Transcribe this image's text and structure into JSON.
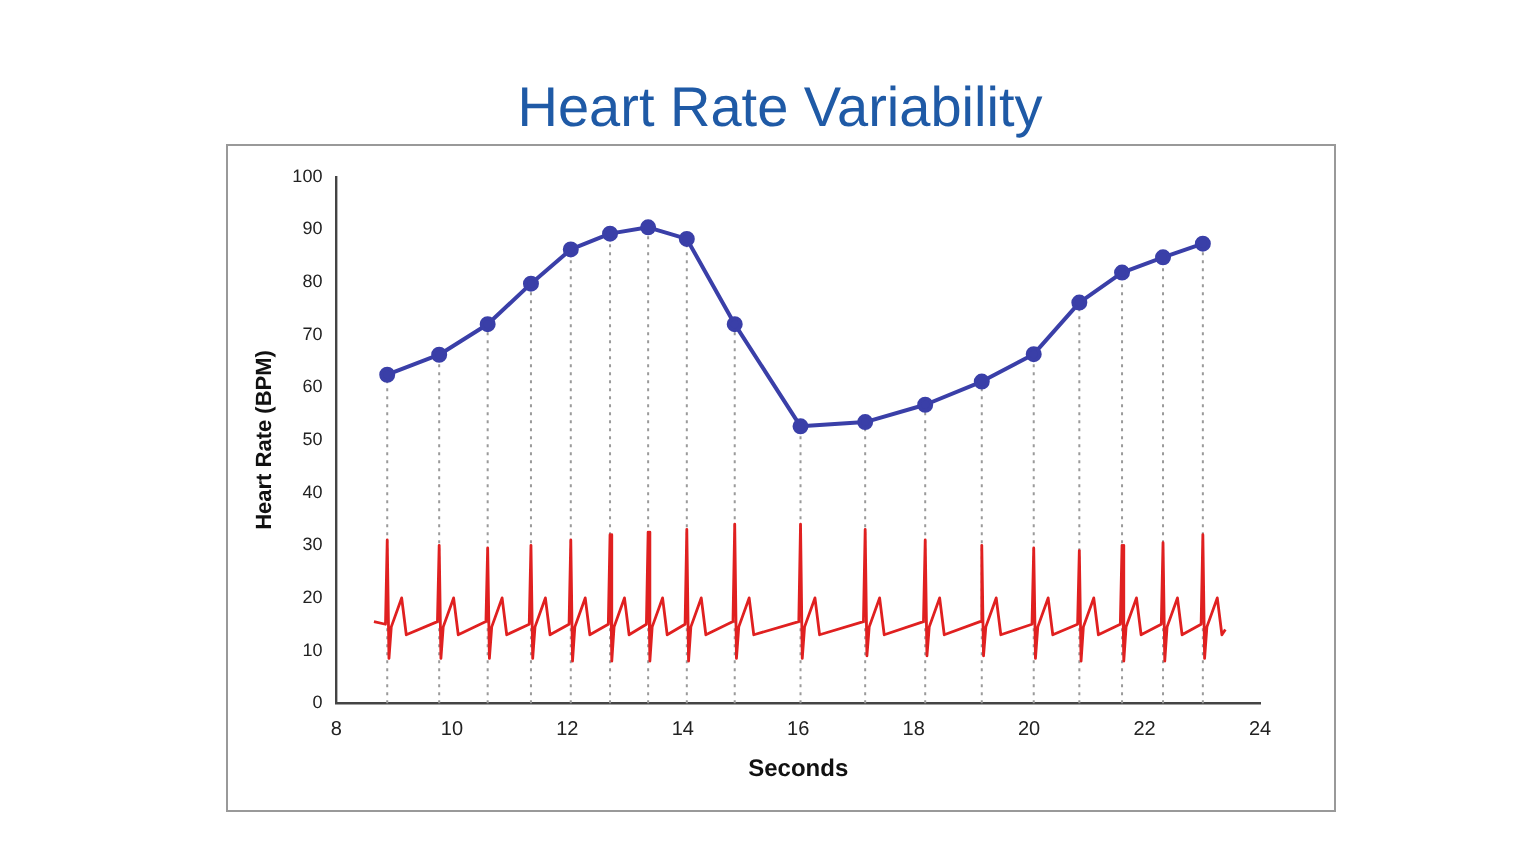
{
  "chart_data": {
    "type": "line",
    "title": "Heart Rate Variability",
    "xlabel": "Seconds",
    "ylabel": "Heart Rate (BPM)",
    "xlim": [
      8,
      24
    ],
    "xticks": [
      8,
      10,
      12,
      14,
      16,
      18,
      20,
      22,
      24
    ],
    "ylim": [
      0,
      100
    ],
    "yticks": [
      0,
      10,
      20,
      30,
      40,
      50,
      60,
      70,
      80,
      90,
      100
    ],
    "grid": false,
    "legend": false,
    "series": [
      {
        "color": "#3a3fa8",
        "marker": "circle",
        "x": [
          8.88,
          9.78,
          10.62,
          11.37,
          12.06,
          12.74,
          13.4,
          14.07,
          14.9,
          16.04,
          17.16,
          18.2,
          19.18,
          20.08,
          20.87,
          21.61,
          22.32,
          23.01
        ],
        "values": [
          62.4,
          66.2,
          72,
          79.7,
          86.2,
          89.2,
          90.4,
          88.2,
          72,
          52.6,
          53.4,
          56.7,
          61.1,
          66.3,
          76.1,
          81.8,
          84.7,
          87.3
        ]
      },
      {
        "color": "#e02020",
        "marker": "none",
        "x": [
          8.65,
          8.85,
          8.88,
          8.91,
          8.95,
          9.13,
          9.21,
          9.75,
          9.78,
          9.81,
          9.85,
          10.03,
          10.11,
          10.59,
          10.62,
          10.65,
          10.69,
          10.87,
          10.95,
          11.34,
          11.37,
          11.4,
          11.44,
          11.62,
          11.7,
          12.03,
          12.06,
          12.09,
          12.13,
          12.31,
          12.39,
          12.71,
          12.74,
          12.77,
          12.81,
          12.99,
          13.07,
          13.37,
          13.4,
          13.43,
          13.47,
          13.65,
          13.73,
          14.04,
          14.07,
          14.1,
          14.14,
          14.32,
          14.4,
          14.87,
          14.9,
          14.93,
          14.97,
          15.15,
          15.23,
          16.01,
          16.04,
          16.07,
          16.11,
          16.29,
          16.37,
          17.13,
          17.16,
          17.19,
          17.23,
          17.41,
          17.49,
          18.17,
          18.2,
          18.23,
          18.27,
          18.45,
          18.53,
          19.15,
          19.18,
          19.21,
          19.25,
          19.43,
          19.51,
          20.05,
          20.08,
          20.11,
          20.15,
          20.33,
          20.41,
          20.84,
          20.87,
          20.9,
          20.94,
          21.12,
          21.2,
          21.58,
          21.61,
          21.64,
          21.68,
          21.86,
          21.94,
          22.29,
          22.32,
          22.35,
          22.39,
          22.57,
          22.65,
          22.98,
          23.01,
          23.04,
          23.08,
          23.26,
          23.34,
          23.4
        ],
        "values": [
          15.5,
          15,
          31,
          8.5,
          14.5,
          20,
          13,
          15.5,
          30,
          8.5,
          14.5,
          20,
          13,
          15.5,
          29.5,
          8.5,
          14.5,
          20,
          13,
          15,
          30,
          8.5,
          14.5,
          20,
          13,
          15,
          31,
          8,
          14.5,
          20,
          13,
          15,
          32,
          8,
          14.5,
          20,
          13,
          15,
          32.5,
          8,
          14.5,
          20,
          13,
          15,
          33,
          8,
          14.5,
          20,
          13,
          15.5,
          34,
          8.5,
          14.5,
          20,
          13,
          15.5,
          34,
          8.5,
          14.5,
          20,
          13,
          15.5,
          33,
          9,
          14.5,
          20,
          13,
          15.5,
          31,
          9,
          14.5,
          20,
          13,
          15.5,
          30,
          9,
          14.5,
          20,
          13,
          15,
          29.5,
          8.5,
          14.5,
          20,
          13,
          15,
          29,
          8,
          14.5,
          20,
          13,
          15,
          30,
          8,
          14.5,
          20,
          13,
          15,
          30.5,
          8,
          14.5,
          20,
          13,
          15,
          32,
          8.5,
          14.5,
          20,
          13,
          14
        ]
      }
    ],
    "ref_lines": [
      {
        "axis": "x",
        "value": 8.88,
        "color": "#9a9a9a",
        "line_style": "dotted"
      },
      {
        "axis": "x",
        "value": 9.78,
        "color": "#9a9a9a",
        "line_style": "dotted"
      },
      {
        "axis": "x",
        "value": 10.62,
        "color": "#9a9a9a",
        "line_style": "dotted"
      },
      {
        "axis": "x",
        "value": 11.37,
        "color": "#9a9a9a",
        "line_style": "dotted"
      },
      {
        "axis": "x",
        "value": 12.06,
        "color": "#9a9a9a",
        "line_style": "dotted"
      },
      {
        "axis": "x",
        "value": 12.74,
        "color": "#9a9a9a",
        "line_style": "dotted"
      },
      {
        "axis": "x",
        "value": 13.4,
        "color": "#9a9a9a",
        "line_style": "dotted"
      },
      {
        "axis": "x",
        "value": 14.07,
        "color": "#9a9a9a",
        "line_style": "dotted"
      },
      {
        "axis": "x",
        "value": 14.9,
        "color": "#9a9a9a",
        "line_style": "dotted"
      },
      {
        "axis": "x",
        "value": 16.04,
        "color": "#9a9a9a",
        "line_style": "dotted"
      },
      {
        "axis": "x",
        "value": 17.16,
        "color": "#9a9a9a",
        "line_style": "dotted"
      },
      {
        "axis": "x",
        "value": 18.2,
        "color": "#9a9a9a",
        "line_style": "dotted"
      },
      {
        "axis": "x",
        "value": 19.18,
        "color": "#9a9a9a",
        "line_style": "dotted"
      },
      {
        "axis": "x",
        "value": 20.08,
        "color": "#9a9a9a",
        "line_style": "dotted"
      },
      {
        "axis": "x",
        "value": 20.87,
        "color": "#9a9a9a",
        "line_style": "dotted"
      },
      {
        "axis": "x",
        "value": 21.61,
        "color": "#9a9a9a",
        "line_style": "dotted"
      },
      {
        "axis": "x",
        "value": 22.32,
        "color": "#9a9a9a",
        "line_style": "dotted"
      },
      {
        "axis": "x",
        "value": 23.01,
        "color": "#9a9a9a",
        "line_style": "dotted"
      }
    ]
  }
}
